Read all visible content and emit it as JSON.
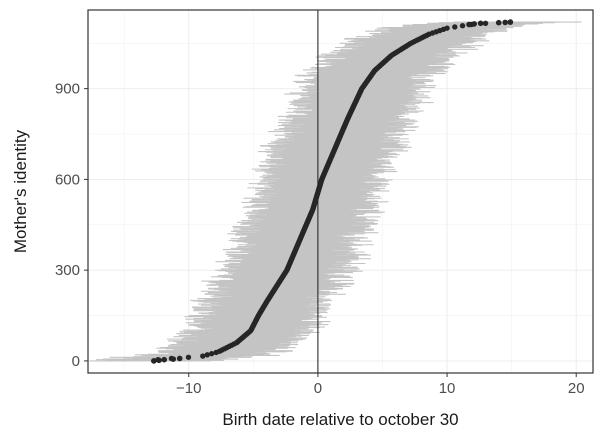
{
  "chart_data": {
    "type": "scatter",
    "title": "",
    "xlabel": "Birth date relative to october 30",
    "ylabel": "Mother's identity",
    "xlim": [
      -17.8,
      21.3
    ],
    "ylim": [
      -40,
      1160
    ],
    "x_ticks": [
      -10,
      0,
      10,
      20
    ],
    "x_tick_labels": [
      "−10",
      "0",
      "10",
      "20"
    ],
    "y_ticks": [
      0,
      300,
      600,
      900
    ],
    "y_tick_labels": [
      "0",
      "300",
      "600",
      "900"
    ],
    "grid": true,
    "reference_line_x": 0,
    "n_mothers": 1120,
    "series": [
      {
        "role": "points",
        "marker_color": "#262626",
        "note_key_points": [
          {
            "id": 0,
            "x": -12.7
          },
          {
            "id": 5,
            "x": -12.3
          },
          {
            "id": 10,
            "x": -10.7
          },
          {
            "id": 15,
            "x": -9.0
          },
          {
            "id": 30,
            "x": -7.7
          },
          {
            "id": 60,
            "x": -6.3
          },
          {
            "id": 100,
            "x": -5.2
          },
          {
            "id": 150,
            "x": -4.6
          },
          {
            "id": 200,
            "x": -3.9
          },
          {
            "id": 300,
            "x": -2.4
          },
          {
            "id": 400,
            "x": -1.4
          },
          {
            "id": 500,
            "x": -0.4
          },
          {
            "id": 600,
            "x": 0.3
          },
          {
            "id": 700,
            "x": 1.3
          },
          {
            "id": 800,
            "x": 2.3
          },
          {
            "id": 900,
            "x": 3.4
          },
          {
            "id": 960,
            "x": 4.4
          },
          {
            "id": 1010,
            "x": 5.7
          },
          {
            "id": 1050,
            "x": 7.2
          },
          {
            "id": 1080,
            "x": 8.6
          },
          {
            "id": 1100,
            "x": 10.0
          },
          {
            "id": 1110,
            "x": 11.5
          },
          {
            "id": 1115,
            "x": 12.5
          },
          {
            "id": 1120,
            "x": 14.9
          }
        ]
      },
      {
        "role": "intervals",
        "color": "#c4c4c4",
        "half_width_range": [
          3.5,
          5.5
        ]
      }
    ]
  }
}
